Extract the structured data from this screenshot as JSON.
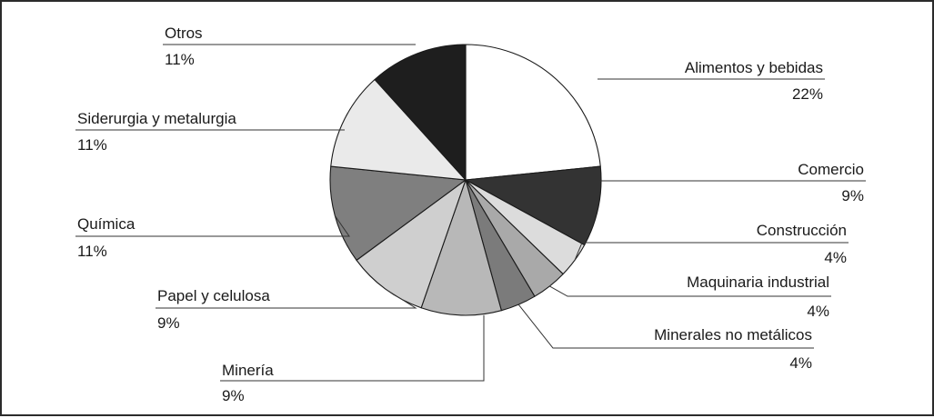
{
  "chart_data": {
    "type": "pie",
    "start_angle_deg": 0,
    "direction": "clockwise",
    "label_style": "leader-lines",
    "slices": [
      {
        "label": "Alimentos y bebidas",
        "value": 22,
        "value_label": "22%",
        "color": "#ffffff"
      },
      {
        "label": "Comercio",
        "value": 9,
        "value_label": "9%",
        "color": "#333333"
      },
      {
        "label": "Construcción",
        "value": 4,
        "value_label": "4%",
        "color": "#dcdcdc"
      },
      {
        "label": "Maquinaria industrial",
        "value": 4,
        "value_label": "4%",
        "color": "#a9a9a9"
      },
      {
        "label": "Minerales no metálicos",
        "value": 4,
        "value_label": "4%",
        "color": "#7b7b7b"
      },
      {
        "label": "Minería",
        "value": 9,
        "value_label": "9%",
        "color": "#b8b8b8"
      },
      {
        "label": "Papel y celulosa",
        "value": 9,
        "value_label": "9%",
        "color": "#cfcfcf"
      },
      {
        "label": "Química",
        "value": 11,
        "value_label": "11%",
        "color": "#7f7f7f"
      },
      {
        "label": "Siderurgia y metalurgia",
        "value": 11,
        "value_label": "11%",
        "color": "#eaeaea"
      },
      {
        "label": "Otros",
        "value": 11,
        "value_label": "11%",
        "color": "#1e1e1e"
      }
    ]
  }
}
